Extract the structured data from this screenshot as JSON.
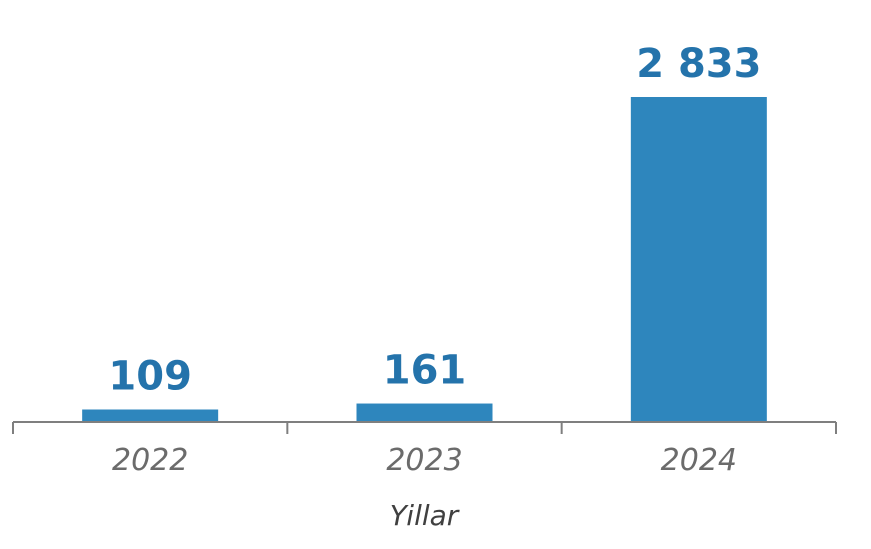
{
  "chart_data": {
    "type": "bar",
    "categories": [
      "2022",
      "2023",
      "2024"
    ],
    "values": [
      109,
      161,
      2833
    ],
    "data_labels": [
      "109",
      "161",
      "2 833"
    ],
    "title": "",
    "xlabel": "Yillar",
    "ylabel": "",
    "ylim": [
      0,
      2900
    ],
    "grid": false,
    "legend": "none"
  },
  "colors": {
    "bar": "#2e86bd",
    "label": "#2473ab",
    "axis": "#7f7f7f",
    "tick_text": "#6b6b6b",
    "xlabel_text": "#404040"
  }
}
